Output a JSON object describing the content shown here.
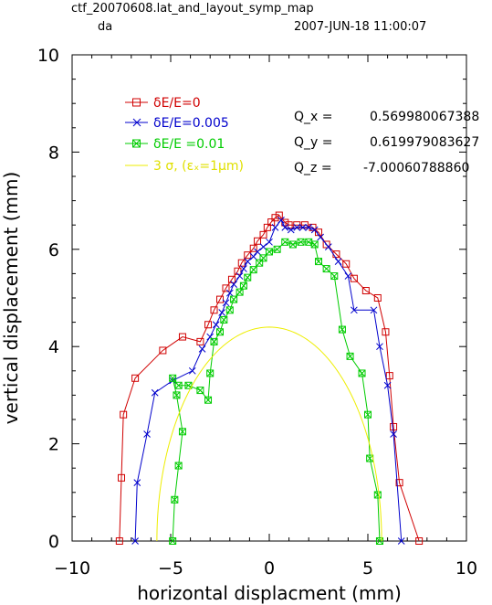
{
  "header": {
    "title": "ctf_20070608.lat_and_layout_symp_map",
    "subtitle": "da",
    "timestamp": "2007-JUN-18  11:00:07"
  },
  "q_values": [
    {
      "label": "Q_x =",
      "value": "0.569980067388"
    },
    {
      "label": "Q_y =",
      "value": "0.619979083627"
    },
    {
      "label": "Q_z =",
      "value": "-7.00060788860"
    }
  ],
  "chart_data": {
    "type": "line",
    "xlabel": "horizontal displacment (mm)",
    "ylabel": "vertical displacement (mm)",
    "xlim": [
      -10,
      10
    ],
    "ylim": [
      0,
      10
    ],
    "xticks": [
      -10,
      -5,
      0,
      5,
      10
    ],
    "yticks": [
      0,
      2,
      4,
      6,
      8,
      10
    ],
    "legend_position": "top-left",
    "grid": false,
    "series": [
      {
        "name": "δE/E=0",
        "color": "#d00000",
        "marker": "square",
        "points": [
          [
            -7.6,
            0
          ],
          [
            -7.5,
            1.3
          ],
          [
            -7.4,
            2.6
          ],
          [
            -6.8,
            3.35
          ],
          [
            -5.4,
            3.92
          ],
          [
            -4.4,
            4.2
          ],
          [
            -3.5,
            4.1
          ],
          [
            -3.1,
            4.45
          ],
          [
            -2.8,
            4.75
          ],
          [
            -2.5,
            4.97
          ],
          [
            -2.2,
            5.2
          ],
          [
            -1.9,
            5.38
          ],
          [
            -1.6,
            5.55
          ],
          [
            -1.4,
            5.72
          ],
          [
            -1.1,
            5.88
          ],
          [
            -0.8,
            6.02
          ],
          [
            -0.6,
            6.17
          ],
          [
            -0.3,
            6.3
          ],
          [
            -0.1,
            6.45
          ],
          [
            0.1,
            6.56
          ],
          [
            0.3,
            6.65
          ],
          [
            0.5,
            6.7
          ],
          [
            0.8,
            6.55
          ],
          [
            1.0,
            6.5
          ],
          [
            1.4,
            6.5
          ],
          [
            1.8,
            6.5
          ],
          [
            2.2,
            6.45
          ],
          [
            2.5,
            6.35
          ],
          [
            2.9,
            6.1
          ],
          [
            3.4,
            5.9
          ],
          [
            3.9,
            5.7
          ],
          [
            4.3,
            5.4
          ],
          [
            4.9,
            5.15
          ],
          [
            5.5,
            5.0
          ],
          [
            5.9,
            4.3
          ],
          [
            6.1,
            3.4
          ],
          [
            6.3,
            2.35
          ],
          [
            6.6,
            1.2
          ],
          [
            7.6,
            0
          ]
        ]
      },
      {
        "name": "δE/E=0.005",
        "color": "#0000cc",
        "points": [
          [
            -6.8,
            0
          ],
          [
            -6.7,
            1.2
          ],
          [
            -6.2,
            2.2
          ],
          [
            -5.8,
            3.05
          ],
          [
            -4.9,
            3.3
          ],
          [
            -3.9,
            3.5
          ],
          [
            -3.4,
            3.95
          ],
          [
            -3.0,
            4.2
          ],
          [
            -2.7,
            4.45
          ],
          [
            -2.4,
            4.7
          ],
          [
            -2.2,
            4.9
          ],
          [
            -2.0,
            5.1
          ],
          [
            -1.8,
            5.28
          ],
          [
            -1.5,
            5.45
          ],
          [
            -1.3,
            5.6
          ],
          [
            -1.1,
            5.75
          ],
          [
            -0.8,
            5.85
          ],
          [
            -0.6,
            5.95
          ],
          [
            -0.3,
            6.05
          ],
          [
            0.0,
            6.15
          ],
          [
            0.3,
            6.45
          ],
          [
            0.6,
            6.6
          ],
          [
            0.8,
            6.45
          ],
          [
            1.1,
            6.4
          ],
          [
            1.4,
            6.45
          ],
          [
            1.7,
            6.45
          ],
          [
            2.0,
            6.45
          ],
          [
            2.3,
            6.4
          ],
          [
            2.6,
            6.25
          ],
          [
            3.0,
            6.05
          ],
          [
            3.5,
            5.75
          ],
          [
            4.0,
            5.45
          ],
          [
            4.3,
            4.75
          ],
          [
            5.3,
            4.75
          ],
          [
            5.6,
            4.0
          ],
          [
            6.0,
            3.2
          ],
          [
            6.3,
            2.2
          ],
          [
            6.7,
            0
          ]
        ]
      },
      {
        "name": "δE/E =0.01",
        "color": "#00cc00",
        "marker": "crossed-square",
        "points": [
          [
            -4.9,
            0
          ],
          [
            -4.8,
            0.85
          ],
          [
            -4.6,
            1.55
          ],
          [
            -4.4,
            2.25
          ],
          [
            -4.7,
            3.0
          ],
          [
            -4.9,
            3.35
          ],
          [
            -4.6,
            3.2
          ],
          [
            -4.1,
            3.2
          ],
          [
            -3.5,
            3.1
          ],
          [
            -3.1,
            2.9
          ],
          [
            -3.0,
            3.45
          ],
          [
            -2.8,
            4.1
          ],
          [
            -2.5,
            4.3
          ],
          [
            -2.3,
            4.55
          ],
          [
            -2.0,
            4.75
          ],
          [
            -1.8,
            4.97
          ],
          [
            -1.5,
            5.12
          ],
          [
            -1.3,
            5.25
          ],
          [
            -1.1,
            5.42
          ],
          [
            -0.8,
            5.58
          ],
          [
            -0.5,
            5.72
          ],
          [
            -0.3,
            5.82
          ],
          [
            0.0,
            5.95
          ],
          [
            0.4,
            6.0
          ],
          [
            0.8,
            6.15
          ],
          [
            1.2,
            6.1
          ],
          [
            1.6,
            6.15
          ],
          [
            2.0,
            6.15
          ],
          [
            2.3,
            6.1
          ],
          [
            2.5,
            5.75
          ],
          [
            2.9,
            5.6
          ],
          [
            3.3,
            5.45
          ],
          [
            3.7,
            4.35
          ],
          [
            4.1,
            3.8
          ],
          [
            4.7,
            3.45
          ],
          [
            5.0,
            2.6
          ],
          [
            5.1,
            1.7
          ],
          [
            5.5,
            0.95
          ],
          [
            5.6,
            0
          ]
        ]
      },
      {
        "name": "3 σ, (εₓ=1μm)",
        "color": "#eeee00",
        "type": "ellipse",
        "rx": 5.7,
        "ry": 4.4,
        "center": [
          0,
          0
        ]
      }
    ]
  }
}
